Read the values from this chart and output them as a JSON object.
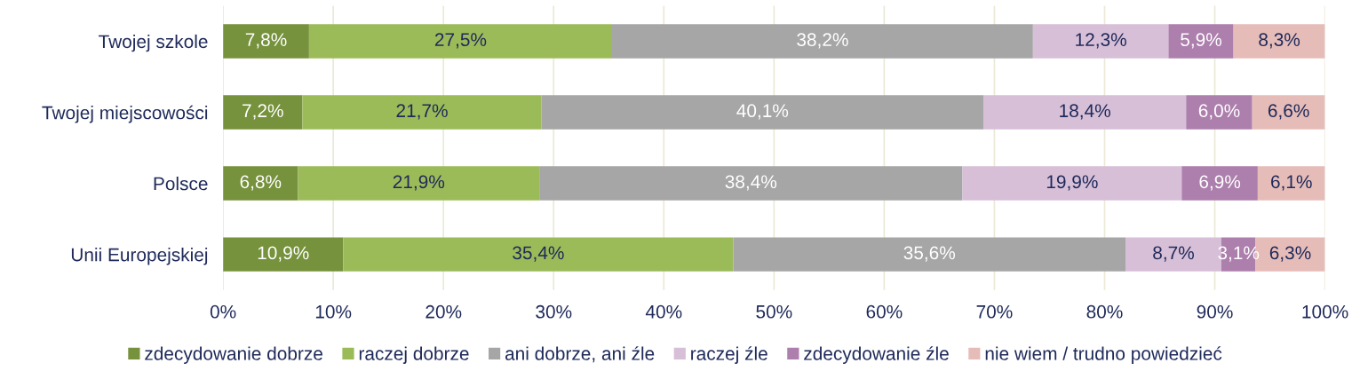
{
  "chart_data": {
    "type": "bar",
    "orientation": "horizontal",
    "stacked": true,
    "categories": [
      "Twojej szkole",
      "Twojej miejscowości",
      "Polsce",
      "Unii Europejskiej"
    ],
    "series": [
      {
        "name": "zdecydowanie dobrze",
        "color": "#76923c",
        "values": [
          7.8,
          7.2,
          6.8,
          10.9
        ],
        "value_labels": [
          "7,8%",
          "7,2%",
          "6,8%",
          "10,9%"
        ]
      },
      {
        "name": "raczej dobrze",
        "color": "#9bbb59",
        "values": [
          27.5,
          21.7,
          21.9,
          35.4
        ],
        "value_labels": [
          "27,5%",
          "21,7%",
          "21,9%",
          "35,4%"
        ]
      },
      {
        "name": "ani dobrze, ani źle",
        "color": "#a6a6a6",
        "values": [
          38.2,
          40.1,
          38.4,
          35.6
        ],
        "value_labels": [
          "38,2%",
          "40,1%",
          "38,4%",
          "35,6%"
        ]
      },
      {
        "name": "raczej źle",
        "color": "#d7bfd7",
        "values": [
          12.3,
          18.4,
          19.9,
          8.7
        ],
        "value_labels": [
          "12,3%",
          "18,4%",
          "19,9%",
          "8,7%"
        ]
      },
      {
        "name": "zdecydowanie źle",
        "color": "#ad7fad",
        "values": [
          5.9,
          6.0,
          6.9,
          3.1
        ],
        "value_labels": [
          "5,9%",
          "6,0%",
          "6,9%",
          "3,1%"
        ]
      },
      {
        "name": "nie wiem / trudno powiedzieć",
        "color": "#e6bcb8",
        "values": [
          8.3,
          6.6,
          6.1,
          6.3
        ],
        "value_labels": [
          "8,3%",
          "6,6%",
          "6,1%",
          "6,3%"
        ]
      }
    ],
    "xlim": [
      0,
      100
    ],
    "xticks": [
      {
        "value": 0,
        "label": "0%"
      },
      {
        "value": 10,
        "label": "10%"
      },
      {
        "value": 20,
        "label": "20%"
      },
      {
        "value": 30,
        "label": "30%"
      },
      {
        "value": 40,
        "label": "40%"
      },
      {
        "value": 50,
        "label": "50%"
      },
      {
        "value": 60,
        "label": "60%"
      },
      {
        "value": 70,
        "label": "70%"
      },
      {
        "value": 80,
        "label": "80%"
      },
      {
        "value": 90,
        "label": "90%"
      },
      {
        "value": 100,
        "label": "100%"
      }
    ],
    "grid": "x",
    "legend": "bottom"
  }
}
